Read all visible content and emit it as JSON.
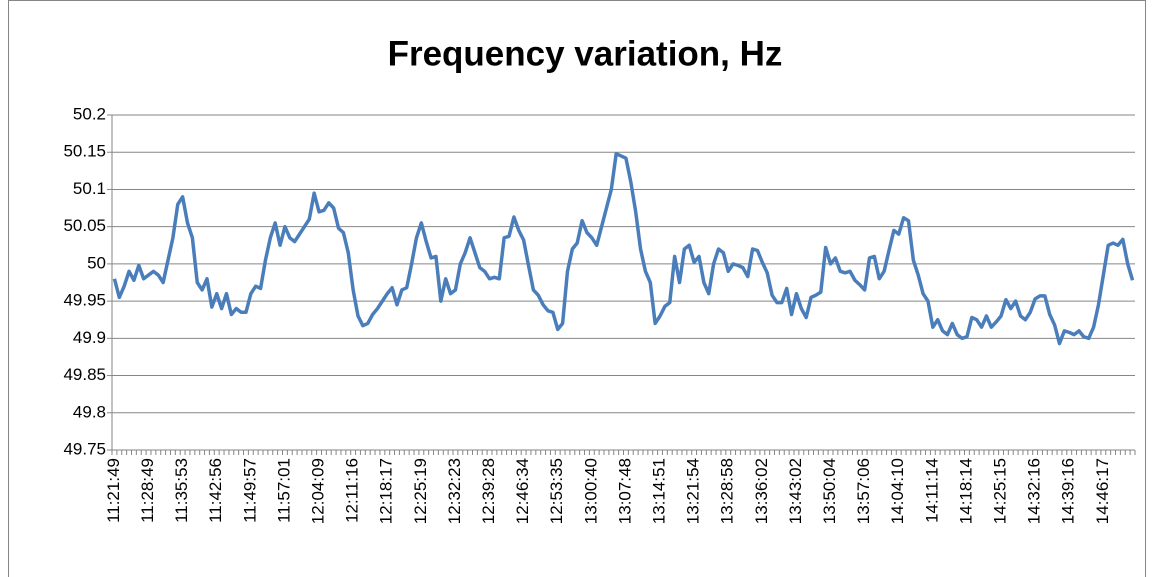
{
  "chart_data": {
    "type": "line",
    "title": "Frequency variation, Hz",
    "categories": [
      "11:21:49",
      null,
      null,
      null,
      null,
      null,
      null,
      "11:28:49",
      null,
      null,
      null,
      null,
      null,
      null,
      "11:35:53",
      null,
      null,
      null,
      null,
      null,
      null,
      "11:42:56",
      null,
      null,
      null,
      null,
      null,
      null,
      "11:49:57",
      null,
      null,
      null,
      null,
      null,
      null,
      "11:57:01",
      null,
      null,
      null,
      null,
      null,
      null,
      "12:04:09",
      null,
      null,
      null,
      null,
      null,
      null,
      "12:11:16",
      null,
      null,
      null,
      null,
      null,
      null,
      "12:18:17",
      null,
      null,
      null,
      null,
      null,
      null,
      "12:25:19",
      null,
      null,
      null,
      null,
      null,
      null,
      "12:32:23",
      null,
      null,
      null,
      null,
      null,
      null,
      "12:39:28",
      null,
      null,
      null,
      null,
      null,
      null,
      "12:46:34",
      null,
      null,
      null,
      null,
      null,
      null,
      "12:53:35",
      null,
      null,
      null,
      null,
      null,
      null,
      "13:00:40",
      null,
      null,
      null,
      null,
      null,
      null,
      "13:07:48",
      null,
      null,
      null,
      null,
      null,
      null,
      "13:14:51",
      null,
      null,
      null,
      null,
      null,
      null,
      "13:21:54",
      null,
      null,
      null,
      null,
      null,
      null,
      "13:28:58",
      null,
      null,
      null,
      null,
      null,
      null,
      "13:36:02",
      null,
      null,
      null,
      null,
      null,
      null,
      "13:43:02",
      null,
      null,
      null,
      null,
      null,
      null,
      "13:50:04",
      null,
      null,
      null,
      null,
      null,
      null,
      "13:57:06",
      null,
      null,
      null,
      null,
      null,
      null,
      "14:04:10",
      null,
      null,
      null,
      null,
      null,
      null,
      "14:11:14",
      null,
      null,
      null,
      null,
      null,
      null,
      "14:18:14",
      null,
      null,
      null,
      null,
      null,
      null,
      "14:25:15",
      null,
      null,
      null,
      null,
      null,
      null,
      "14:32:16",
      null,
      null,
      null,
      null,
      null,
      null,
      "14:39:16",
      null,
      null,
      null,
      null,
      null,
      null,
      "14:46:17",
      null,
      null,
      null,
      null,
      null,
      null
    ],
    "values": [
      49.98,
      49.955,
      49.97,
      49.99,
      49.978,
      49.998,
      49.98,
      49.985,
      49.99,
      49.985,
      49.975,
      50.005,
      50.035,
      50.08,
      50.09,
      50.055,
      50.035,
      49.975,
      49.965,
      49.98,
      49.942,
      49.96,
      49.94,
      49.96,
      49.932,
      49.94,
      49.935,
      49.935,
      49.96,
      49.97,
      49.967,
      50.005,
      50.035,
      50.055,
      50.025,
      50.05,
      50.035,
      50.03,
      50.04,
      50.05,
      50.06,
      50.095,
      50.07,
      50.072,
      50.082,
      50.075,
      50.048,
      50.042,
      50.015,
      49.965,
      49.93,
      49.917,
      49.92,
      49.932,
      49.94,
      49.95,
      49.96,
      49.968,
      49.945,
      49.965,
      49.968,
      50.0,
      50.035,
      50.055,
      50.03,
      50.008,
      50.01,
      49.95,
      49.98,
      49.96,
      49.965,
      50.0,
      50.015,
      50.035,
      50.015,
      49.995,
      49.99,
      49.98,
      49.982,
      49.98,
      50.035,
      50.037,
      50.063,
      50.045,
      50.032,
      49.998,
      49.965,
      49.958,
      49.945,
      49.937,
      49.935,
      49.912,
      49.92,
      49.99,
      50.02,
      50.028,
      50.058,
      50.042,
      50.035,
      50.025,
      50.05,
      50.075,
      50.1,
      50.148,
      50.145,
      50.142,
      50.11,
      50.07,
      50.02,
      49.99,
      49.975,
      49.92,
      49.93,
      49.943,
      49.948,
      50.01,
      49.975,
      50.02,
      50.025,
      50.002,
      50.01,
      49.975,
      49.96,
      50.0,
      50.02,
      50.015,
      49.99,
      50.0,
      49.998,
      49.995,
      49.983,
      50.02,
      50.018,
      50.002,
      49.988,
      49.958,
      49.948,
      49.948,
      49.967,
      49.932,
      49.96,
      49.94,
      49.928,
      49.955,
      49.958,
      49.962,
      50.022,
      50.0,
      50.008,
      49.99,
      49.988,
      49.99,
      49.978,
      49.972,
      49.965,
      50.008,
      50.01,
      49.98,
      49.99,
      50.018,
      50.045,
      50.04,
      50.062,
      50.058,
      50.005,
      49.985,
      49.96,
      49.95,
      49.915,
      49.925,
      49.91,
      49.905,
      49.92,
      49.905,
      49.9,
      49.902,
      49.928,
      49.925,
      49.915,
      49.93,
      49.915,
      49.922,
      49.93,
      49.952,
      49.94,
      49.95,
      49.93,
      49.925,
      49.935,
      49.953,
      49.957,
      49.957,
      49.932,
      49.918,
      49.893,
      49.91,
      49.908,
      49.905,
      49.91,
      49.902,
      49.9,
      49.915,
      49.945,
      49.985,
      50.025,
      50.028,
      50.025,
      50.033,
      50.0,
      49.978
    ],
    "color": "#4a7ebb",
    "ylim": [
      49.75,
      50.2
    ],
    "yticks": [
      49.75,
      49.8,
      49.85,
      49.9,
      49.95,
      50,
      50.05,
      50.1,
      50.15,
      50.2
    ],
    "grid": true
  }
}
